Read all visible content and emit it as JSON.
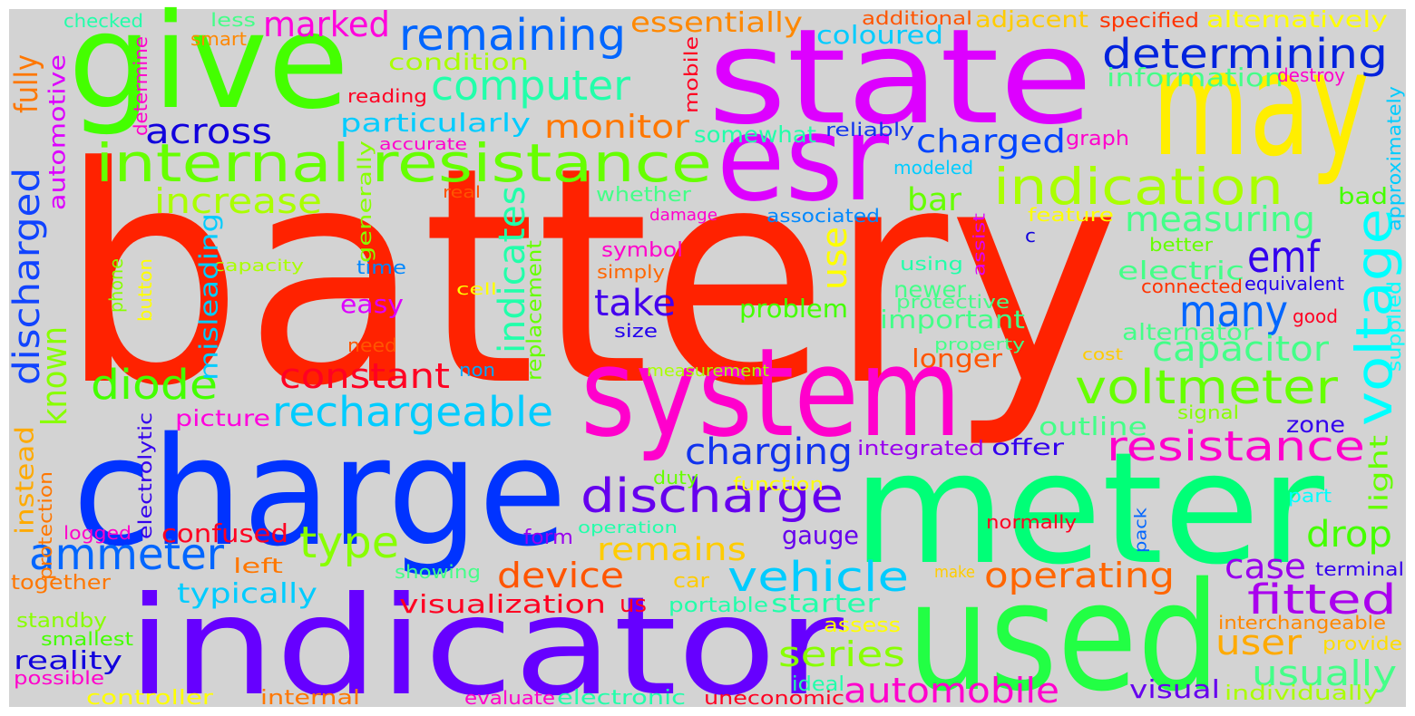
{
  "words": [
    {
      "text": "battery",
      "color": "#ff2200"
    },
    {
      "text": "give",
      "color": "#44ff00"
    },
    {
      "text": "state",
      "color": "#dd00ff"
    },
    {
      "text": "may",
      "color": "#ffee00"
    },
    {
      "text": "esr",
      "color": "#dd00ff"
    },
    {
      "text": "system",
      "color": "#ff00cc"
    },
    {
      "text": "charge",
      "color": "#0033ff"
    },
    {
      "text": "meter",
      "color": "#00ff77"
    },
    {
      "text": "indicator",
      "color": "#6600ff"
    },
    {
      "text": "used",
      "color": "#22ff44"
    },
    {
      "text": "internal resistance",
      "color": "#66ff00"
    },
    {
      "text": "indication",
      "color": "#aaff00"
    },
    {
      "text": "remaining",
      "color": "#0066ff"
    },
    {
      "text": "determining",
      "color": "#0022dd"
    },
    {
      "text": "computer",
      "color": "#22ffaa"
    },
    {
      "text": "marked",
      "color": "#ff00dd"
    },
    {
      "text": "essentially",
      "color": "#ff8800"
    },
    {
      "text": "across",
      "color": "#1100dd"
    },
    {
      "text": "monitor",
      "color": "#ff7700"
    },
    {
      "text": "particularly",
      "color": "#00ccff"
    },
    {
      "text": "charged",
      "color": "#0044ff"
    },
    {
      "text": "somewhat",
      "color": "#22ffaa"
    },
    {
      "text": "increase",
      "color": "#aaff00"
    },
    {
      "text": "measuring",
      "color": "#44ff88"
    },
    {
      "text": "bar",
      "color": "#66ff00"
    },
    {
      "text": "emf",
      "color": "#3300ee"
    },
    {
      "text": "many",
      "color": "#0066ff"
    },
    {
      "text": "take",
      "color": "#4400ee"
    },
    {
      "text": "diode",
      "color": "#44ff00"
    },
    {
      "text": "constant",
      "color": "#ff0022"
    },
    {
      "text": "rechargeable",
      "color": "#00ccff"
    },
    {
      "text": "voltmeter",
      "color": "#66ff00"
    },
    {
      "text": "capacitor",
      "color": "#44ff88"
    },
    {
      "text": "resistance",
      "color": "#ff00cc"
    },
    {
      "text": "discharge",
      "color": "#6600ee"
    },
    {
      "text": "charging",
      "color": "#1133ee"
    },
    {
      "text": "ammeter",
      "color": "#0066ff"
    },
    {
      "text": "type",
      "color": "#88ff00"
    },
    {
      "text": "remains",
      "color": "#ffcc00"
    },
    {
      "text": "device",
      "color": "#ff5500"
    },
    {
      "text": "vehicle",
      "color": "#00ccff"
    },
    {
      "text": "operating",
      "color": "#ff6600"
    },
    {
      "text": "case",
      "color": "#9900ee"
    },
    {
      "text": "drop",
      "color": "#44ff00"
    },
    {
      "text": "fitted",
      "color": "#aa00ee"
    },
    {
      "text": "typically",
      "color": "#00ccff"
    },
    {
      "text": "visualization",
      "color": "#ff0022"
    },
    {
      "text": "us",
      "color": "#ff0022"
    },
    {
      "text": "starter",
      "color": "#22ffaa"
    },
    {
      "text": "portable",
      "color": "#22ffaa"
    },
    {
      "text": "series",
      "color": "#88ff00"
    },
    {
      "text": "automobile",
      "color": "#ff00cc"
    },
    {
      "text": "user",
      "color": "#ffaa00"
    },
    {
      "text": "usually",
      "color": "#44ff88"
    },
    {
      "text": "reality",
      "color": "#1100dd"
    },
    {
      "text": "confused",
      "color": "#ff0022"
    },
    {
      "text": "picture",
      "color": "#ff00dd"
    },
    {
      "text": "easy",
      "color": "#dd00ff"
    },
    {
      "text": "outline",
      "color": "#44ff88"
    },
    {
      "text": "integrated",
      "color": "#9900ee"
    },
    {
      "text": "offer",
      "color": "#3300ee"
    },
    {
      "text": "zone",
      "color": "#3300ee"
    },
    {
      "text": "longer",
      "color": "#ff5500"
    },
    {
      "text": "important",
      "color": "#44ff88"
    },
    {
      "text": "problem",
      "color": "#44ff00"
    },
    {
      "text": "newer",
      "color": "#44ff88"
    },
    {
      "text": "electric",
      "color": "#44ff88"
    },
    {
      "text": "alternator",
      "color": "#44ff88"
    },
    {
      "text": "information",
      "color": "#44ff88"
    },
    {
      "text": "coloured",
      "color": "#00ccff"
    },
    {
      "text": "condition",
      "color": "#aaff00"
    },
    {
      "text": "symbol",
      "color": "#ff00cc"
    },
    {
      "text": "whether",
      "color": "#44ff88"
    },
    {
      "text": "associated",
      "color": "#0088ff"
    },
    {
      "text": "damage",
      "color": "#ff00cc"
    },
    {
      "text": "gauge",
      "color": "#6600ee"
    },
    {
      "text": "terminal",
      "color": "#3300ee"
    },
    {
      "text": "visual",
      "color": "#6600ee"
    },
    {
      "text": "individually",
      "color": "#aaff00"
    },
    {
      "text": "interchangeable",
      "color": "#ff8800"
    },
    {
      "text": "provide",
      "color": "#ffdd00"
    },
    {
      "text": "assess",
      "color": "#ffff00"
    },
    {
      "text": "ideal",
      "color": "#22ffaa"
    },
    {
      "text": "electronic",
      "color": "#22ffaa"
    },
    {
      "text": "evaluate",
      "color": "#ff00cc"
    },
    {
      "text": "uneconomic",
      "color": "#ff0022"
    },
    {
      "text": "internal",
      "color": "#ff7700"
    },
    {
      "text": "controller",
      "color": "#ffff00"
    },
    {
      "text": "possible",
      "color": "#ff00cc"
    },
    {
      "text": "smallest",
      "color": "#44ff00"
    },
    {
      "text": "standby",
      "color": "#88ff00"
    },
    {
      "text": "together",
      "color": "#ff7700"
    },
    {
      "text": "logged",
      "color": "#ff00cc"
    },
    {
      "text": "left",
      "color": "#ff7700"
    },
    {
      "text": "showing",
      "color": "#44ff88"
    },
    {
      "text": "form",
      "color": "#9900ee"
    },
    {
      "text": "operation",
      "color": "#22ffaa"
    },
    {
      "text": "duty",
      "color": "#66ff00"
    },
    {
      "text": "function",
      "color": "#ffff00"
    },
    {
      "text": "car",
      "color": "#ffcc00"
    },
    {
      "text": "make",
      "color": "#ffcc00"
    },
    {
      "text": "normally",
      "color": "#ff0022"
    },
    {
      "text": "part",
      "color": "#00ffff"
    },
    {
      "text": "cost",
      "color": "#ffcc00"
    },
    {
      "text": "property",
      "color": "#44ff88"
    },
    {
      "text": "measurement",
      "color": "#aaff00"
    },
    {
      "text": "non",
      "color": "#00aaff"
    },
    {
      "text": "need",
      "color": "#ff5500"
    },
    {
      "text": "size",
      "color": "#2200ee"
    },
    {
      "text": "simply",
      "color": "#ff6600"
    },
    {
      "text": "time",
      "color": "#0088ff"
    },
    {
      "text": "capacity",
      "color": "#aaff00"
    },
    {
      "text": "cell",
      "color": "#ffff00"
    },
    {
      "text": "real",
      "color": "#ff5500"
    },
    {
      "text": "accurate",
      "color": "#ff00cc"
    },
    {
      "text": "reading",
      "color": "#ff0022"
    },
    {
      "text": "smart",
      "color": "#ff8800"
    },
    {
      "text": "less",
      "color": "#44ff88"
    },
    {
      "text": "checked",
      "color": "#22ffaa"
    },
    {
      "text": "additional",
      "color": "#ff5500"
    },
    {
      "text": "adjacent",
      "color": "#ffcc00"
    },
    {
      "text": "specified",
      "color": "#ff3300"
    },
    {
      "text": "alternatively",
      "color": "#ffff00"
    },
    {
      "text": "destroy",
      "color": "#ff00cc"
    },
    {
      "text": "reliably",
      "color": "#1133ee"
    },
    {
      "text": "graph",
      "color": "#ff00cc"
    },
    {
      "text": "modeled",
      "color": "#00ccff"
    },
    {
      "text": "feature",
      "color": "#ffff00"
    },
    {
      "text": "better",
      "color": "#66ff00"
    },
    {
      "text": "bad",
      "color": "#44ff00"
    },
    {
      "text": "using",
      "color": "#22ffaa"
    },
    {
      "text": "protective",
      "color": "#44ff88"
    },
    {
      "text": "c",
      "color": "#1100dd"
    },
    {
      "text": "connected",
      "color": "#ff3300"
    },
    {
      "text": "equivalent",
      "color": "#2200ee"
    },
    {
      "text": "good",
      "color": "#ff0022"
    },
    {
      "text": "signal",
      "color": "#88ff00"
    },
    {
      "text": "discharged",
      "color": "#1144ff"
    },
    {
      "text": "fully",
      "color": "#ff7700"
    },
    {
      "text": "automotive",
      "color": "#dd00ff"
    },
    {
      "text": "known",
      "color": "#88ff00"
    },
    {
      "text": "instead",
      "color": "#ffaa00"
    },
    {
      "text": "protection",
      "color": "#ff7700"
    },
    {
      "text": "electrolytic",
      "color": "#3300ee"
    },
    {
      "text": "misleading",
      "color": "#00ccff"
    },
    {
      "text": "phone",
      "color": "#88ff00"
    },
    {
      "text": "button",
      "color": "#ffff00"
    },
    {
      "text": "generally",
      "color": "#88ff00"
    },
    {
      "text": "determine",
      "color": "#ff00cc"
    },
    {
      "text": "mobile",
      "color": "#ff0022"
    },
    {
      "text": "indicates",
      "color": "#22ffaa"
    },
    {
      "text": "replacement",
      "color": "#66ff00"
    },
    {
      "text": "use",
      "color": "#ffff00"
    },
    {
      "text": "assist",
      "color": "#dd00ff"
    },
    {
      "text": "voltage",
      "color": "#00ffff"
    },
    {
      "text": "light",
      "color": "#66ff00"
    },
    {
      "text": "supplied",
      "color": "#00ffff"
    },
    {
      "text": "approximately",
      "color": "#00ccff"
    },
    {
      "text": "pack",
      "color": "#0066ff"
    }
  ]
}
